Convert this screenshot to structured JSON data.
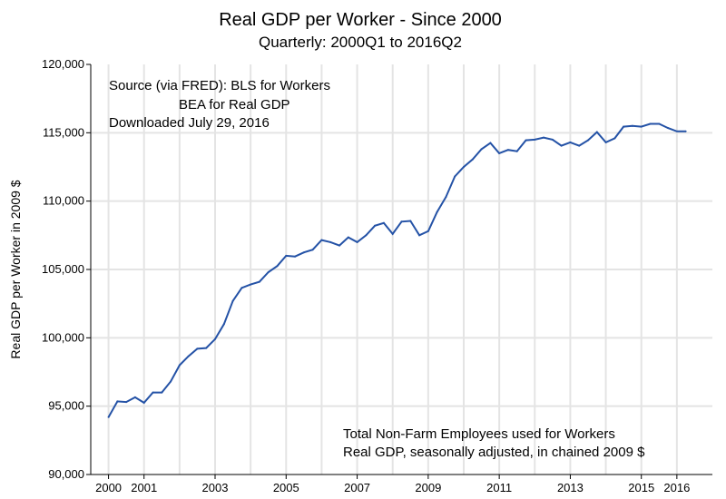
{
  "chart_data": {
    "type": "line",
    "title": "Real GDP per Worker - Since 2000",
    "subtitle": "Quarterly:  2000Q1 to 2016Q2",
    "ylabel": "Real GDP per Worker in 2009 $",
    "xlabel": "",
    "ylim": [
      90000,
      120000
    ],
    "xlim": [
      1999.5,
      2017.0
    ],
    "y_ticks": [
      {
        "value": 90000,
        "label": "90,000"
      },
      {
        "value": 95000,
        "label": "95,000"
      },
      {
        "value": 100000,
        "label": "100,000"
      },
      {
        "value": 105000,
        "label": "105,000"
      },
      {
        "value": 110000,
        "label": "110,000"
      },
      {
        "value": 115000,
        "label": "115,000"
      },
      {
        "value": 120000,
        "label": "120,000"
      }
    ],
    "x_ticks": [
      {
        "value": 2000.0,
        "label": "2000"
      },
      {
        "value": 2001.0,
        "label": "2001"
      },
      {
        "value": 2003.0,
        "label": "2003"
      },
      {
        "value": 2005.0,
        "label": "2005"
      },
      {
        "value": 2007.0,
        "label": "2007"
      },
      {
        "value": 2009.0,
        "label": "2009"
      },
      {
        "value": 2011.0,
        "label": "2011"
      },
      {
        "value": 2013.0,
        "label": "2013"
      },
      {
        "value": 2015.0,
        "label": "2015"
      },
      {
        "value": 2016.0,
        "label": "2016"
      }
    ],
    "grid_x": [
      2000,
      2001,
      2002,
      2003,
      2004,
      2005,
      2006,
      2007,
      2008,
      2009,
      2010,
      2011,
      2012,
      2013,
      2014,
      2015,
      2016
    ],
    "grid_y": [
      95000,
      100000,
      105000,
      110000,
      115000
    ],
    "grid": true,
    "annotations": {
      "source": [
        "Source (via FRED):  BLS for Workers",
        "BEA for Real GDP",
        "Downloaded July 29, 2016"
      ],
      "notes": [
        "Total Non-Farm Employees used for Workers",
        "Real GDP, seasonally adjusted, in chained 2009 $"
      ]
    },
    "series": [
      {
        "name": "Real GDP per Worker",
        "color": "#2452a6",
        "x": [
          2000.0,
          2000.25,
          2000.5,
          2000.75,
          2001.0,
          2001.25,
          2001.5,
          2001.75,
          2002.0,
          2002.25,
          2002.5,
          2002.75,
          2003.0,
          2003.25,
          2003.5,
          2003.75,
          2004.0,
          2004.25,
          2004.5,
          2004.75,
          2005.0,
          2005.25,
          2005.5,
          2005.75,
          2006.0,
          2006.25,
          2006.5,
          2006.75,
          2007.0,
          2007.25,
          2007.5,
          2007.75,
          2008.0,
          2008.25,
          2008.5,
          2008.75,
          2009.0,
          2009.25,
          2009.5,
          2009.75,
          2010.0,
          2010.25,
          2010.5,
          2010.75,
          2011.0,
          2011.25,
          2011.5,
          2011.75,
          2012.0,
          2012.25,
          2012.5,
          2012.75,
          2013.0,
          2013.25,
          2013.5,
          2013.75,
          2014.0,
          2014.25,
          2014.5,
          2014.75,
          2015.0,
          2015.25,
          2015.5,
          2015.75,
          2016.0,
          2016.25
        ],
        "values": [
          94200,
          95350,
          95300,
          95650,
          95250,
          96000,
          96000,
          96800,
          98000,
          98650,
          99200,
          99250,
          99900,
          101000,
          102700,
          103650,
          103900,
          104100,
          104800,
          105250,
          106000,
          105950,
          106250,
          106450,
          107150,
          107000,
          106750,
          107350,
          107000,
          107500,
          108200,
          108400,
          107600,
          108500,
          108550,
          107500,
          107800,
          109200,
          110300,
          111800,
          112500,
          113050,
          113800,
          114250,
          113500,
          113750,
          113650,
          114450,
          114500,
          114650,
          114500,
          114050,
          114300,
          114050,
          114450,
          115050,
          114300,
          114600,
          115450,
          115500,
          115450,
          115650,
          115650,
          115350,
          115100,
          115100
        ]
      }
    ]
  }
}
